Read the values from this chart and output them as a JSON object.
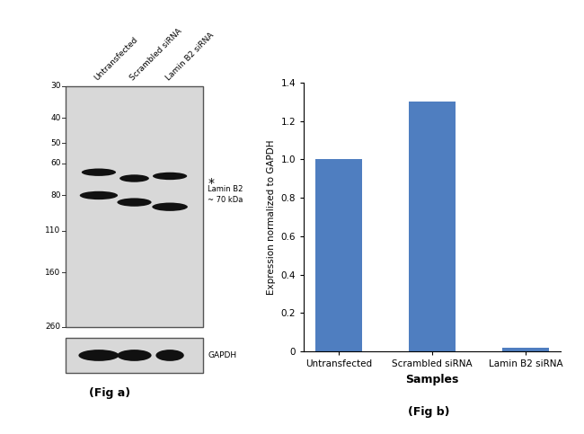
{
  "fig_width": 6.5,
  "fig_height": 4.83,
  "dpi": 100,
  "background_color": "#ffffff",
  "wb_panel": {
    "gel_facecolor": "#d8d8d8",
    "gel_edgecolor": "#555555",
    "band_color": "#111111",
    "mw_labels": [
      260,
      160,
      110,
      80,
      60,
      50,
      40,
      30
    ],
    "col_labels": [
      "Untransfected",
      "Scrambled siRNA",
      "Lamin B2 siRNA"
    ],
    "gapdh_label": "GAPDH",
    "fig_label": "(Fig a)"
  },
  "bar_panel": {
    "categories": [
      "Untransfected",
      "Scrambled siRNA",
      "Lamin B2 siRNA"
    ],
    "values": [
      1.0,
      1.3,
      0.02
    ],
    "bar_color": "#4f7ec0",
    "bar_width": 0.5,
    "ylim": [
      0,
      1.4
    ],
    "yticks": [
      0,
      0.2,
      0.4,
      0.6,
      0.8,
      1.0,
      1.2,
      1.4
    ],
    "ylabel": "Expression normalized to GAPDH",
    "xlabel": "Samples",
    "xlabel_fontsize": 9,
    "ylabel_fontsize": 7.5,
    "tick_fontsize": 7.5,
    "fig_label": "(Fig b)"
  }
}
